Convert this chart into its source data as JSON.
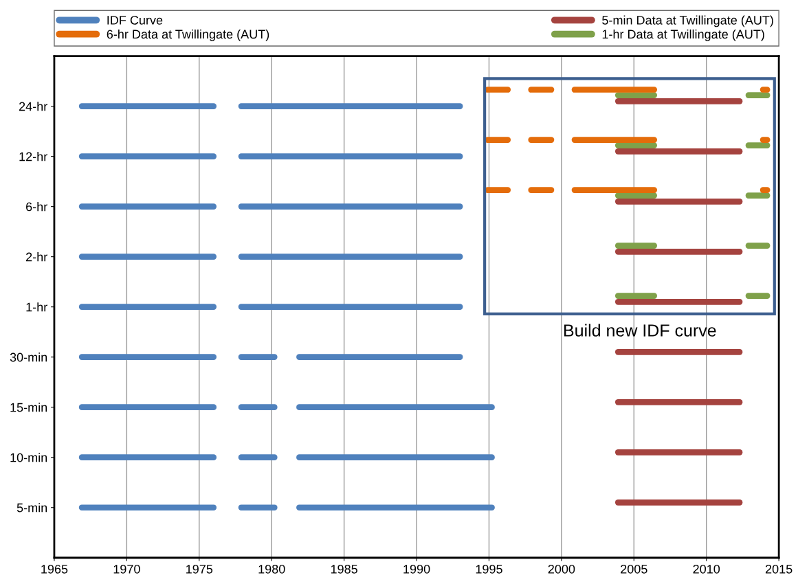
{
  "chart_data": {
    "type": "bar",
    "orientation": "horizontal",
    "categories": [
      "24-hr",
      "12-hr",
      "6-hr",
      "2-hr",
      "1-hr",
      "30-min",
      "15-min",
      "10-min",
      "5-min"
    ],
    "xlim": [
      1965,
      2015
    ],
    "xticks": [
      1965,
      1970,
      1975,
      1980,
      1985,
      1990,
      1995,
      2000,
      2005,
      2010,
      2015
    ],
    "grid": "x",
    "legend": "top",
    "annotations": [
      "Build new IDF curve"
    ],
    "series": [
      {
        "name": "IDF Curve",
        "color": "#4f81bd",
        "base": [
          1966.9,
          1966.9,
          1966.9,
          1966.9,
          1966.9,
          1966.9,
          1966.9,
          1966.9,
          1966.9
        ],
        "values": [
          9.1,
          9.1,
          9.1,
          9.1,
          9.1,
          9.1,
          9.1,
          9.1,
          9.1
        ]
      },
      {
        "color": "#4f81bd",
        "base": [
          1977.9,
          1977.9,
          1977.9,
          1977.9,
          1977.9,
          1977.9,
          1977.9,
          1977.9,
          1977.9
        ],
        "values": [
          15.1,
          15.1,
          15.1,
          15.1,
          15.1,
          2.3,
          2.3,
          2.3,
          2.3
        ]
      },
      {
        "color": "#4f81bd",
        "base": [
          null,
          null,
          null,
          null,
          null,
          1981.9,
          1981.9,
          1981.9,
          1981.9
        ],
        "values": [
          null,
          null,
          null,
          null,
          null,
          11.1,
          13.3,
          13.3,
          13.3
        ]
      },
      {
        "name": "6-hr Data at Twillingate (AUT)",
        "color": "#e46c0a",
        "base": [
          1994.9,
          1994.9,
          1994.9,
          null,
          null,
          null,
          null,
          null,
          null
        ],
        "values": [
          1.4,
          1.4,
          1.4,
          null,
          null,
          null,
          null,
          null,
          null
        ]
      },
      {
        "color": "#e46c0a",
        "base": [
          1997.9,
          1997.9,
          1997.9,
          null,
          null,
          null,
          null,
          null,
          null
        ],
        "values": [
          1.4,
          1.4,
          1.4,
          null,
          null,
          null,
          null,
          null,
          null
        ]
      },
      {
        "color": "#e46c0a",
        "base": [
          2000.9,
          2000.9,
          2000.9,
          null,
          null,
          null,
          null,
          null,
          null
        ],
        "values": [
          5.5,
          5.5,
          5.5,
          null,
          null,
          null,
          null,
          null,
          null
        ]
      },
      {
        "color": "#e46c0a",
        "base": [
          2013.9,
          2013.9,
          2013.9,
          null,
          null,
          null,
          null,
          null,
          null
        ],
        "values": [
          0.3,
          0.3,
          0.3,
          null,
          null,
          null,
          null,
          null,
          null
        ]
      },
      {
        "name": "5-min Data at Twillingate (AUT)",
        "color": "#a5433f",
        "base": [
          2003.9,
          2003.9,
          2003.9,
          2003.9,
          2003.9,
          2003.9,
          2003.9,
          2003.9,
          2003.9
        ],
        "values": [
          8.4,
          8.4,
          8.4,
          8.4,
          8.4,
          8.4,
          8.4,
          8.4,
          8.4
        ]
      },
      {
        "name": "1-hr Data at Twillingate (AUT)",
        "color": "#7fa14a",
        "base": [
          2003.9,
          2003.9,
          2003.9,
          2003.9,
          2003.9,
          null,
          null,
          null,
          null
        ],
        "values": [
          2.5,
          2.5,
          2.5,
          2.5,
          2.5,
          null,
          null,
          null,
          null
        ]
      },
      {
        "color": "#7fa14a",
        "base": [
          2012.9,
          2012.9,
          2012.9,
          2012.9,
          2012.9,
          null,
          null,
          null,
          null
        ],
        "values": [
          1.3,
          1.3,
          1.3,
          1.3,
          1.3,
          null,
          null,
          null,
          null
        ]
      }
    ]
  }
}
